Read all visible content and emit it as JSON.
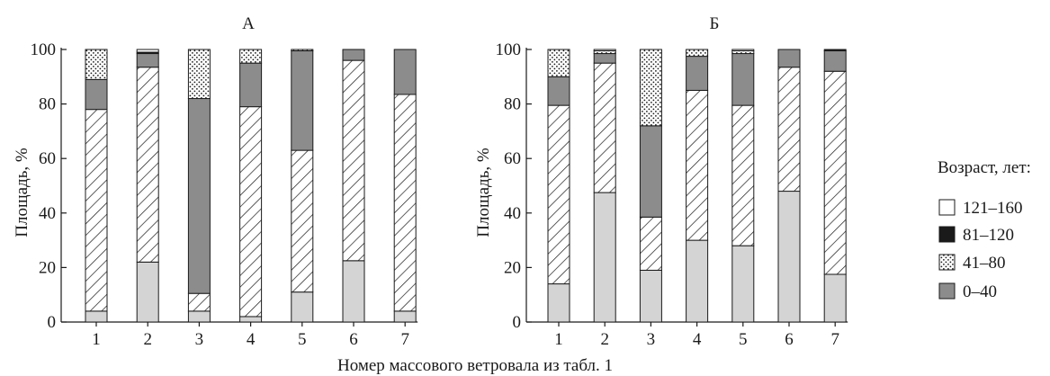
{
  "x_axis_label": "Номер массового ветровала из табл. 1",
  "legend": {
    "title": "Возраст, лет:",
    "items": [
      {
        "label": "121–160",
        "pattern": "white"
      },
      {
        "label": "81–120",
        "pattern": "black"
      },
      {
        "label": "41–80",
        "pattern": "dots"
      },
      {
        "label": "0–40",
        "pattern": "gray"
      }
    ]
  },
  "colors": {
    "light_gray": "#d4d4d4",
    "dark_gray": "#8c8c8c",
    "black": "#1a1a1a",
    "white": "#ffffff"
  },
  "chart_data": [
    {
      "type": "bar",
      "stacked": true,
      "title": "А",
      "xlabel": "Номер массового ветровала из табл. 1",
      "ylabel": "Площадь, %",
      "ylim": [
        0,
        100
      ],
      "yticks": [
        0,
        20,
        40,
        60,
        80,
        100
      ],
      "categories": [
        "1",
        "2",
        "3",
        "4",
        "5",
        "6",
        "7"
      ],
      "series": [
        {
          "key": "s1",
          "pattern": "lightgray",
          "values": [
            4,
            22,
            4,
            2,
            11,
            22.5,
            4
          ]
        },
        {
          "key": "s2",
          "pattern": "hatch",
          "values": [
            74,
            71.5,
            6.5,
            77,
            52,
            73.5,
            79.5
          ]
        },
        {
          "key": "s3",
          "name": "0–40",
          "pattern": "gray",
          "values": [
            11,
            5,
            71.5,
            16,
            36.5,
            4,
            16.5
          ]
        },
        {
          "key": "s4",
          "name": "41–80",
          "pattern": "dots",
          "values": [
            11,
            0,
            18,
            5,
            0.5,
            0,
            0
          ]
        },
        {
          "key": "s5",
          "name": "81–120",
          "pattern": "black",
          "values": [
            0,
            0.5,
            0,
            0,
            0,
            0,
            0
          ]
        },
        {
          "key": "s6",
          "name": "121–160",
          "pattern": "white",
          "values": [
            0,
            1,
            0,
            0,
            0,
            0,
            0
          ]
        }
      ]
    },
    {
      "type": "bar",
      "stacked": true,
      "title": "Б",
      "xlabel": "Номер массового ветровала из табл. 1",
      "ylabel": "Площадь, %",
      "ylim": [
        0,
        100
      ],
      "yticks": [
        0,
        20,
        40,
        60,
        80,
        100
      ],
      "categories": [
        "1",
        "2",
        "3",
        "4",
        "5",
        "6",
        "7"
      ],
      "series": [
        {
          "key": "s1",
          "pattern": "lightgray",
          "values": [
            14,
            47.5,
            19,
            30,
            28,
            48,
            17.5
          ]
        },
        {
          "key": "s2",
          "pattern": "hatch",
          "values": [
            65.5,
            47.5,
            19.5,
            55,
            51.5,
            45.5,
            74.5
          ]
        },
        {
          "key": "s3",
          "name": "0–40",
          "pattern": "gray",
          "values": [
            10.5,
            3.5,
            33.5,
            12.5,
            19,
            6.5,
            7.5
          ]
        },
        {
          "key": "s4",
          "name": "41–80",
          "pattern": "dots",
          "values": [
            10,
            1,
            28,
            2.5,
            1,
            0,
            0
          ]
        },
        {
          "key": "s5",
          "name": "81–120",
          "pattern": "black",
          "values": [
            0,
            0,
            0,
            0,
            0,
            0,
            0.5
          ]
        },
        {
          "key": "s6",
          "name": "121–160",
          "pattern": "white",
          "values": [
            0,
            0.5,
            0,
            0,
            0.5,
            0,
            0
          ]
        }
      ]
    }
  ]
}
